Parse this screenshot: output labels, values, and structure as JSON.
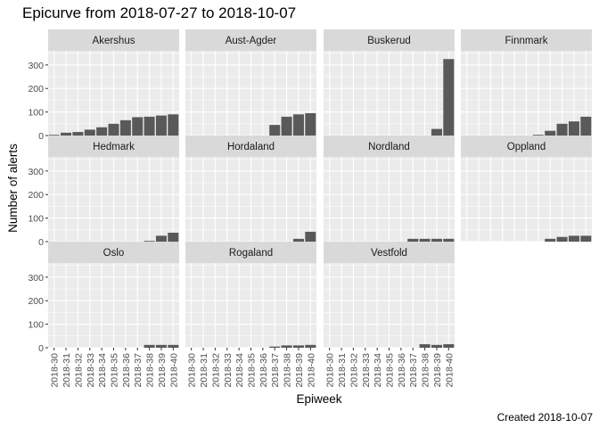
{
  "chart_data": {
    "type": "bar",
    "title": "Epicurve from 2018-07-27 to 2018-10-07",
    "xlabel": "Epiweek",
    "ylabel": "Number of alerts",
    "caption": "Created 2018-10-07",
    "ylim": [
      0,
      360
    ],
    "yticks": [
      0,
      100,
      200,
      300
    ],
    "grid": true,
    "categories": [
      "2018-30",
      "2018-31",
      "2018-32",
      "2018-33",
      "2018-34",
      "2018-35",
      "2018-36",
      "2018-37",
      "2018-38",
      "2018-39",
      "2018-40"
    ],
    "facets": [
      {
        "name": "Akershus",
        "values": [
          3,
          12,
          15,
          25,
          35,
          50,
          65,
          78,
          80,
          85,
          90
        ]
      },
      {
        "name": "Aust-Agder",
        "values": [
          0,
          0,
          0,
          0,
          0,
          0,
          0,
          45,
          80,
          90,
          95
        ]
      },
      {
        "name": "Buskerud",
        "values": [
          0,
          0,
          0,
          0,
          0,
          0,
          0,
          0,
          0,
          28,
          325
        ]
      },
      {
        "name": "Finnmark",
        "values": [
          0,
          0,
          0,
          0,
          0,
          0,
          3,
          20,
          50,
          60,
          80
        ]
      },
      {
        "name": "Hedmark",
        "values": [
          0,
          0,
          0,
          0,
          0,
          0,
          0,
          0,
          3,
          25,
          38
        ]
      },
      {
        "name": "Hordaland",
        "values": [
          0,
          0,
          0,
          0,
          0,
          0,
          0,
          0,
          0,
          12,
          42
        ]
      },
      {
        "name": "Nordland",
        "values": [
          0,
          0,
          0,
          0,
          0,
          0,
          0,
          12,
          12,
          12,
          12
        ]
      },
      {
        "name": "Oppland",
        "values": [
          0,
          0,
          0,
          0,
          0,
          0,
          0,
          12,
          20,
          25,
          25
        ]
      },
      {
        "name": "Oslo",
        "values": [
          0,
          0,
          0,
          0,
          0,
          0,
          0,
          0,
          12,
          12,
          12
        ]
      },
      {
        "name": "Rogaland",
        "values": [
          0,
          0,
          0,
          0,
          0,
          0,
          0,
          5,
          10,
          10,
          12
        ]
      },
      {
        "name": "Vestfold",
        "values": [
          0,
          0,
          0,
          0,
          0,
          0,
          0,
          0,
          15,
          12,
          15
        ]
      }
    ]
  },
  "colors": {
    "panel_bg": "#ebebeb",
    "strip_bg": "#d9d9d9",
    "grid": "#ffffff",
    "bar": "#595959"
  }
}
